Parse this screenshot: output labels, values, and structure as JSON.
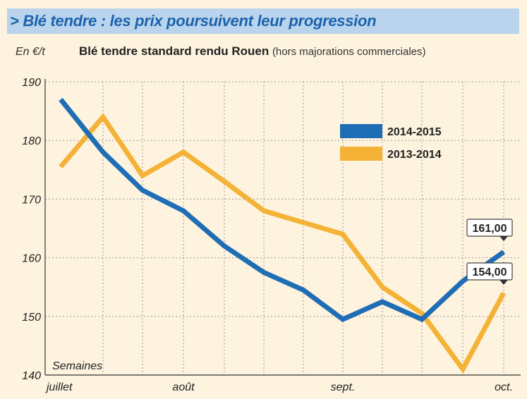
{
  "title": "> Blé tendre : les prix poursuivent leur progression",
  "unit_label": "En €/t",
  "subtitle_main": "Blé tendre standard rendu Rouen",
  "subtitle_note": "(hors majorations commerciales)",
  "chart_data": {
    "type": "line",
    "xlabel": "Semaines",
    "ylabel": "En €/t",
    "ylim": [
      140,
      190
    ],
    "yticks": [
      140,
      150,
      160,
      170,
      180,
      190
    ],
    "month_labels": [
      "juillet",
      "août",
      "sept.",
      "oct."
    ],
    "grid": "dotted vertical and horizontal",
    "legend_position": "top-right",
    "series": [
      {
        "name": "2014-2015",
        "color": "#1f6db5",
        "values": [
          187,
          178,
          171.5,
          168,
          162,
          157.5,
          154.5,
          149.5,
          152.5,
          149.5,
          156,
          161
        ]
      },
      {
        "name": "2013-2014",
        "color": "#f4b237",
        "values": [
          175.5,
          184,
          174,
          178,
          173,
          168,
          166,
          164,
          155,
          150.5,
          141,
          154
        ]
      }
    ],
    "annotations": [
      {
        "series": "2014-2015",
        "text": "161,00"
      },
      {
        "series": "2013-2014",
        "text": "154,00"
      }
    ]
  }
}
